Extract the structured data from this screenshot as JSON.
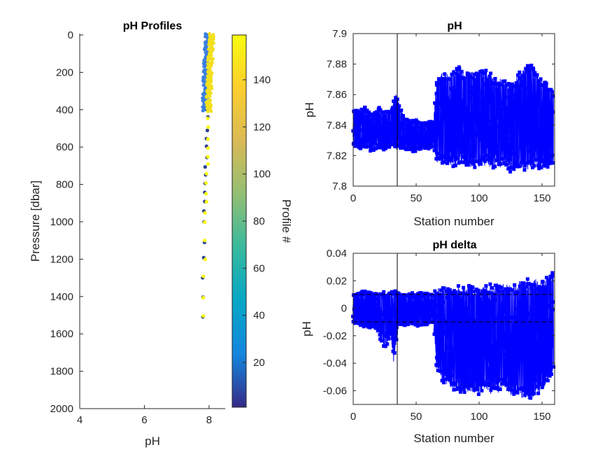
{
  "chart_data": [
    {
      "type": "scatter",
      "title": "pH Profiles",
      "xlabel": "pH",
      "ylabel": "Pressure [dbar]",
      "xlim": [
        4,
        8.5
      ],
      "ylim": [
        0,
        2000
      ],
      "y_reversed": true,
      "xticks": [
        "4",
        "6",
        "8"
      ],
      "yticks": [
        "0",
        "200",
        "400",
        "600",
        "800",
        "1000",
        "1200",
        "1400",
        "1600",
        "1800",
        "2000"
      ],
      "colorbar": {
        "label": "Profile #",
        "range": [
          1,
          159
        ],
        "ticks": [
          "20",
          "40",
          "60",
          "80",
          "100",
          "120",
          "140"
        ],
        "colormap": "parula",
        "colors": [
          "#352a87",
          "#1486de",
          "#06a7c6",
          "#38b99e",
          "#92bf73",
          "#d9ba56",
          "#fcce2e",
          "#f9fb0e"
        ]
      },
      "profiles": [
        {
          "profile_range": [
            1,
            60
          ],
          "color": "#3a7ee0",
          "pressure": [
            0,
            20,
            40,
            60,
            80,
            100,
            120,
            140,
            160,
            180,
            200,
            220,
            240,
            260,
            280,
            300,
            320,
            340,
            360,
            380,
            400
          ],
          "ph": [
            7.95,
            7.95,
            7.94,
            7.94,
            7.93,
            7.93,
            7.92,
            7.92,
            7.91,
            7.91,
            7.9,
            7.9,
            7.89,
            7.89,
            7.88,
            7.88,
            7.88,
            7.87,
            7.87,
            7.87,
            7.87
          ]
        },
        {
          "profile_range": [
            60,
            159
          ],
          "color": "#f2e01c",
          "pressure": [
            0,
            20,
            40,
            60,
            80,
            100,
            120,
            140,
            160,
            180,
            200,
            220,
            240,
            260,
            280,
            300,
            320,
            340,
            360,
            380,
            400
          ],
          "ph": [
            8.08,
            8.07,
            8.07,
            8.06,
            8.06,
            8.05,
            8.05,
            8.04,
            8.04,
            8.03,
            8.03,
            8.02,
            8.02,
            8.01,
            8.01,
            8.0,
            8.0,
            8.0,
            7.99,
            7.99,
            7.99
          ]
        },
        {
          "profile_range": [
            1,
            159
          ],
          "color": "#f9fb0e",
          "pressure": [
            450,
            500,
            550,
            600,
            650,
            700,
            750,
            800,
            850,
            900,
            950,
            1000,
            1100,
            1200,
            1300,
            1400,
            1500
          ],
          "ph": [
            7.97,
            7.96,
            7.96,
            7.95,
            7.95,
            7.94,
            7.93,
            7.92,
            7.92,
            7.91,
            7.9,
            7.89,
            7.87,
            7.86,
            7.85,
            7.84,
            7.83
          ]
        }
      ]
    },
    {
      "type": "line",
      "title": "pH",
      "xlabel": "Station number",
      "ylabel": "pH",
      "xlim": [
        0,
        160
      ],
      "ylim": [
        7.8,
        7.9
      ],
      "xticks": [
        "0",
        "50",
        "100",
        "150"
      ],
      "yticks": [
        "7.8",
        "7.82",
        "7.84",
        "7.86",
        "7.88",
        "7.9"
      ],
      "vline_x": 35,
      "series_color": "#0000ff",
      "envelope": {
        "x": [
          0,
          5,
          10,
          15,
          20,
          25,
          30,
          34,
          40,
          45,
          50,
          55,
          60,
          64,
          66,
          70,
          75,
          80,
          85,
          90,
          95,
          100,
          105,
          110,
          115,
          120,
          125,
          130,
          135,
          138,
          142,
          145,
          150,
          155,
          159
        ],
        "min": [
          7.826,
          7.823,
          7.824,
          7.822,
          7.825,
          7.823,
          7.826,
          7.824,
          7.823,
          7.822,
          7.823,
          7.824,
          7.824,
          7.825,
          7.814,
          7.815,
          7.813,
          7.811,
          7.813,
          7.812,
          7.812,
          7.811,
          7.812,
          7.81,
          7.812,
          7.812,
          7.808,
          7.809,
          7.81,
          7.808,
          7.81,
          7.812,
          7.81,
          7.811,
          7.813
        ],
        "max": [
          7.851,
          7.85,
          7.853,
          7.848,
          7.852,
          7.849,
          7.851,
          7.862,
          7.846,
          7.843,
          7.844,
          7.842,
          7.843,
          7.843,
          7.868,
          7.876,
          7.874,
          7.878,
          7.879,
          7.876,
          7.877,
          7.878,
          7.878,
          7.873,
          7.871,
          7.872,
          7.868,
          7.874,
          7.878,
          7.883,
          7.882,
          7.875,
          7.872,
          7.867,
          7.866
        ]
      }
    },
    {
      "type": "line",
      "title": "pH delta",
      "xlabel": "Station number",
      "ylabel": "pH",
      "xlim": [
        0,
        160
      ],
      "ylim": [
        -0.07,
        0.04
      ],
      "xticks": [
        "0",
        "50",
        "100",
        "150"
      ],
      "yticks": [
        "-0.06",
        "-0.04",
        "-0.02",
        "0",
        "0.02",
        "0.04"
      ],
      "vline_x": 35,
      "hlines": [
        0.01,
        -0.01
      ],
      "series_color": "#0000ff",
      "envelope": {
        "x": [
          0,
          5,
          10,
          15,
          20,
          22,
          25,
          28,
          30,
          32,
          34,
          36,
          40,
          45,
          50,
          55,
          60,
          64,
          66,
          70,
          75,
          80,
          85,
          90,
          95,
          100,
          105,
          110,
          115,
          120,
          125,
          130,
          135,
          140,
          145,
          150,
          155,
          159
        ],
        "min": [
          -0.012,
          -0.013,
          -0.014,
          -0.015,
          -0.018,
          -0.025,
          -0.03,
          -0.026,
          -0.022,
          -0.04,
          -0.03,
          -0.012,
          -0.013,
          -0.012,
          -0.014,
          -0.013,
          -0.012,
          -0.012,
          -0.045,
          -0.055,
          -0.058,
          -0.06,
          -0.062,
          -0.063,
          -0.062,
          -0.063,
          -0.061,
          -0.063,
          -0.062,
          -0.06,
          -0.065,
          -0.064,
          -0.068,
          -0.069,
          -0.065,
          -0.063,
          -0.055,
          -0.05
        ],
        "max": [
          0.011,
          0.012,
          0.013,
          0.012,
          0.012,
          0.013,
          0.013,
          0.012,
          0.013,
          0.012,
          0.013,
          0.012,
          0.011,
          0.012,
          0.012,
          0.012,
          0.012,
          0.011,
          0.016,
          0.016,
          0.017,
          0.016,
          0.017,
          0.018,
          0.018,
          0.017,
          0.018,
          0.018,
          0.019,
          0.018,
          0.02,
          0.019,
          0.021,
          0.022,
          0.023,
          0.022,
          0.025,
          0.027
        ]
      }
    }
  ]
}
